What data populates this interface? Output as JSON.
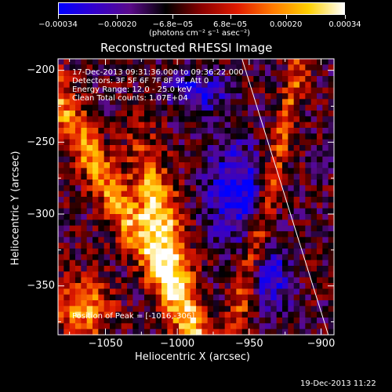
{
  "chart_data": {
    "type": "heatmap",
    "title": "Reconstructed RHESSI Image",
    "xlabel": "Heliocentric X (arcsec)",
    "ylabel": "Heliocentric Y (arcsec)",
    "xlim": [
      -1083,
      -891
    ],
    "ylim": [
      -384,
      -192
    ],
    "x_ticks": [
      -1050,
      -1000,
      -950,
      -900
    ],
    "x_tick_labels": [
      "−1050",
      "−1000",
      "−950",
      "−900"
    ],
    "y_ticks": [
      -200,
      -250,
      -300,
      -350
    ],
    "y_tick_labels": [
      "−200",
      "−250",
      "−300",
      "−350"
    ],
    "colorbar": {
      "min": -0.00034,
      "max": 0.00034,
      "ticks": [
        -0.00034,
        -0.0002,
        -6.8e-05,
        6.8e-05,
        0.0002,
        0.00034
      ],
      "tick_labels": [
        "−0.00034",
        "−0.00020",
        "−6.8e−05",
        "6.8e−05",
        "0.00020",
        "0.00034"
      ],
      "units": "(photons cm⁻² s⁻¹ asec⁻²)",
      "colors": [
        "#0000ff",
        "#3300cc",
        "#5a0a8a",
        "#000000",
        "#8a0000",
        "#e01a00",
        "#ff7a00",
        "#ffd000",
        "#ffffff"
      ]
    },
    "annotations": {
      "time_range": "17-Dec-2013 09:31:36.000 to 09:36:22.000",
      "detectors": "Detectors: 3F 5F 6F 7F 8F 9F, Att 0",
      "energy": "Energy Range: 12.0 - 25.0 keV",
      "clean": "Clean     Total counts: 1.07E+04",
      "peak": "Position of Peak = [-1016,-306]"
    },
    "peak_position": [
      -1016,
      -306
    ],
    "limb_line": [
      [
        -955,
        -192
      ],
      [
        -895,
        -384
      ]
    ],
    "image_features": {
      "bright_ridge": {
        "center": [
          -1012,
          -306
        ],
        "intensity": 0.00034
      },
      "negative_regions": [
        [
          -960,
          -285
        ],
        [
          -985,
          -215
        ],
        [
          -935,
          -345
        ]
      ]
    }
  },
  "footer": {
    "date": "19-Dec-2013 11:22"
  }
}
